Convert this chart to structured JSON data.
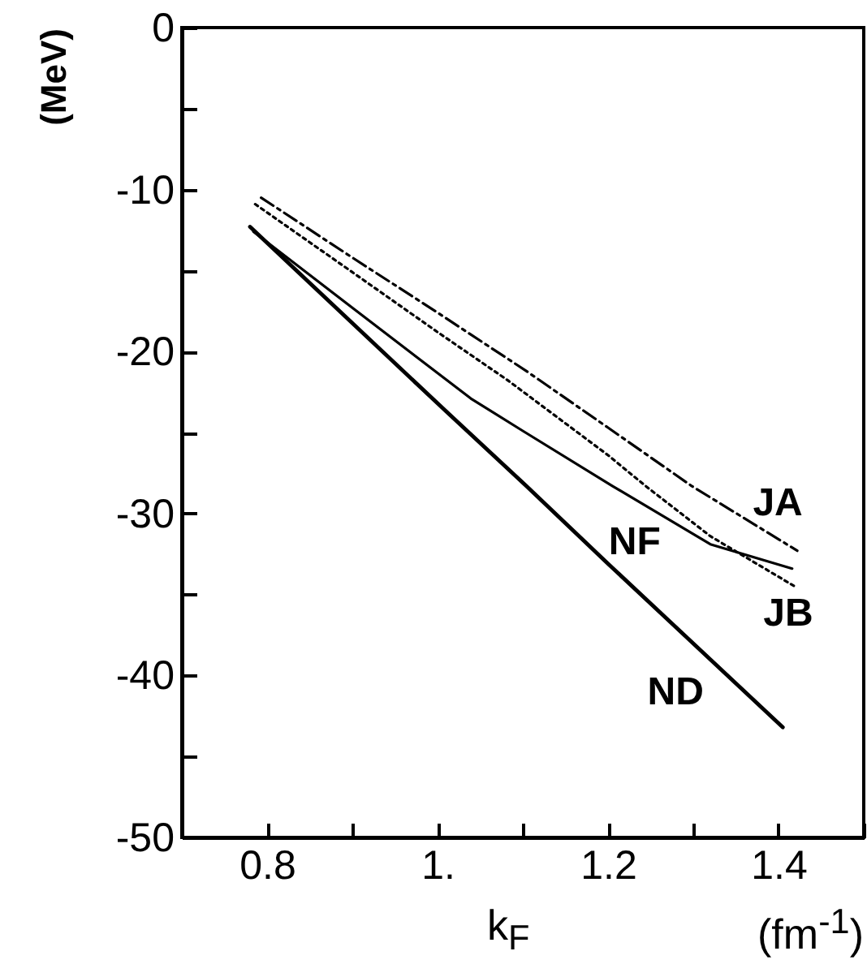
{
  "chart_data": {
    "type": "line",
    "xlabel": "k$_{F}$",
    "ylabel": "(MeV)",
    "annotations": [
      "(fm$^{-1}$)"
    ],
    "xlim": [
      0.7,
      1.5
    ],
    "ylim": [
      -50,
      0
    ],
    "xticks": [
      {
        "value": 0.7,
        "label": null
      },
      0.8,
      {
        "value": 0.9,
        "label": null
      },
      {
        "value": 1,
        "label": "1."
      },
      {
        "value": 1.1,
        "label": null
      },
      1.2,
      {
        "value": 1.3,
        "label": null
      },
      1.4,
      {
        "value": 1.5,
        "label": null
      }
    ],
    "yticks": [
      -50,
      {
        "value": -45,
        "label": null
      },
      -40,
      {
        "value": -35,
        "label": null
      },
      -30,
      {
        "value": -25,
        "label": null
      },
      -20,
      {
        "value": -15,
        "label": null
      },
      -10,
      {
        "value": -5,
        "label": null
      },
      0
    ],
    "marker": "none",
    "series": [
      {
        "name": "JA",
        "color": "#000000",
        "line_style": "dashed",
        "x": [
          0.793,
          0.9,
          1.0,
          1.104,
          1.2,
          1.298,
          1.326,
          1.422
        ],
        "values": [
          -10.5,
          -14.2,
          -17.6,
          -21.2,
          -24.7,
          -28.3,
          -29.2,
          -32.3
        ]
      },
      {
        "name": "JB",
        "color": "#000000",
        "line_style": "dotted",
        "x": [
          0.786,
          0.9,
          1.0,
          1.083,
          1.2,
          1.244,
          1.32,
          1.419
        ],
        "values": [
          -10.9,
          -15.1,
          -18.8,
          -21.8,
          -26.4,
          -28.3,
          -31.4,
          -34.5
        ]
      },
      {
        "name": "NF",
        "color": "#000000",
        "line_style": "solid",
        "x": [
          0.784,
          0.9,
          1.039,
          1.1,
          1.205,
          1.32,
          1.416
        ],
        "values": [
          -12.6,
          -17.3,
          -22.9,
          -24.9,
          -28.3,
          -31.9,
          -33.4
        ]
      },
      {
        "name": "ND",
        "color": "#000000",
        "line_style": "solid",
        "x": [
          0.78,
          1.0,
          1.104,
          1.2,
          1.405
        ],
        "values": [
          -12.3,
          -23.2,
          -28.3,
          -33.1,
          -43.2
        ]
      }
    ]
  }
}
